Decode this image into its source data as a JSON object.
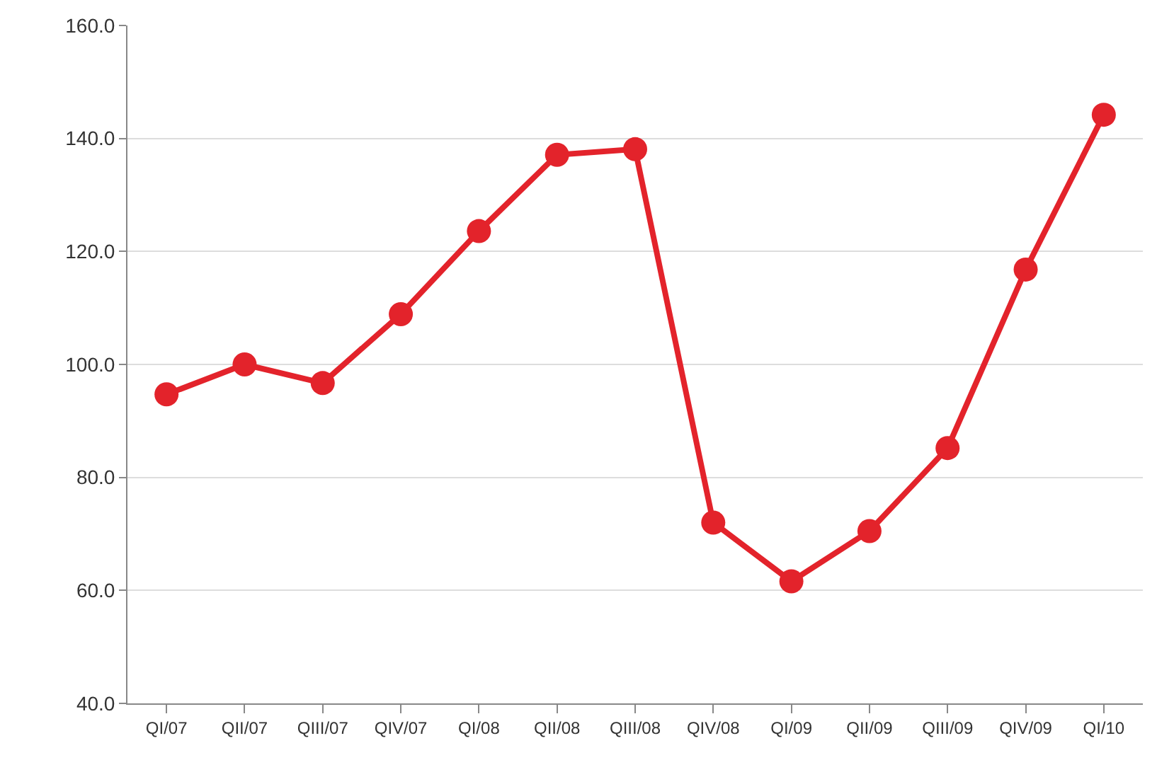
{
  "chart_data": {
    "type": "line",
    "categories": [
      "QI/07",
      "QII/07",
      "QIII/07",
      "QIV/07",
      "QI/08",
      "QII/08",
      "QIII/08",
      "QIV/08",
      "QI/09",
      "QII/09",
      "QIII/09",
      "QIV/09",
      "QI/10"
    ],
    "series": [
      {
        "color": "#e3232b",
        "values": [
          94.7,
          100.0,
          96.7,
          108.9,
          123.6,
          137.1,
          138.1,
          72.0,
          61.6,
          70.5,
          85.2,
          116.8,
          144.2
        ]
      }
    ],
    "ylim": [
      40,
      160
    ],
    "yticks": [
      {
        "value": 40,
        "label": "40.0"
      },
      {
        "value": 60,
        "label": "60.0"
      },
      {
        "value": 80,
        "label": "80.0"
      },
      {
        "value": 100,
        "label": "100.0"
      },
      {
        "value": 120,
        "label": "120.0"
      },
      {
        "value": 140,
        "label": "140.0"
      },
      {
        "value": 160,
        "label": "160.0"
      }
    ],
    "grid": "y",
    "marker": "circle",
    "line_style": "solid",
    "legend": false
  }
}
